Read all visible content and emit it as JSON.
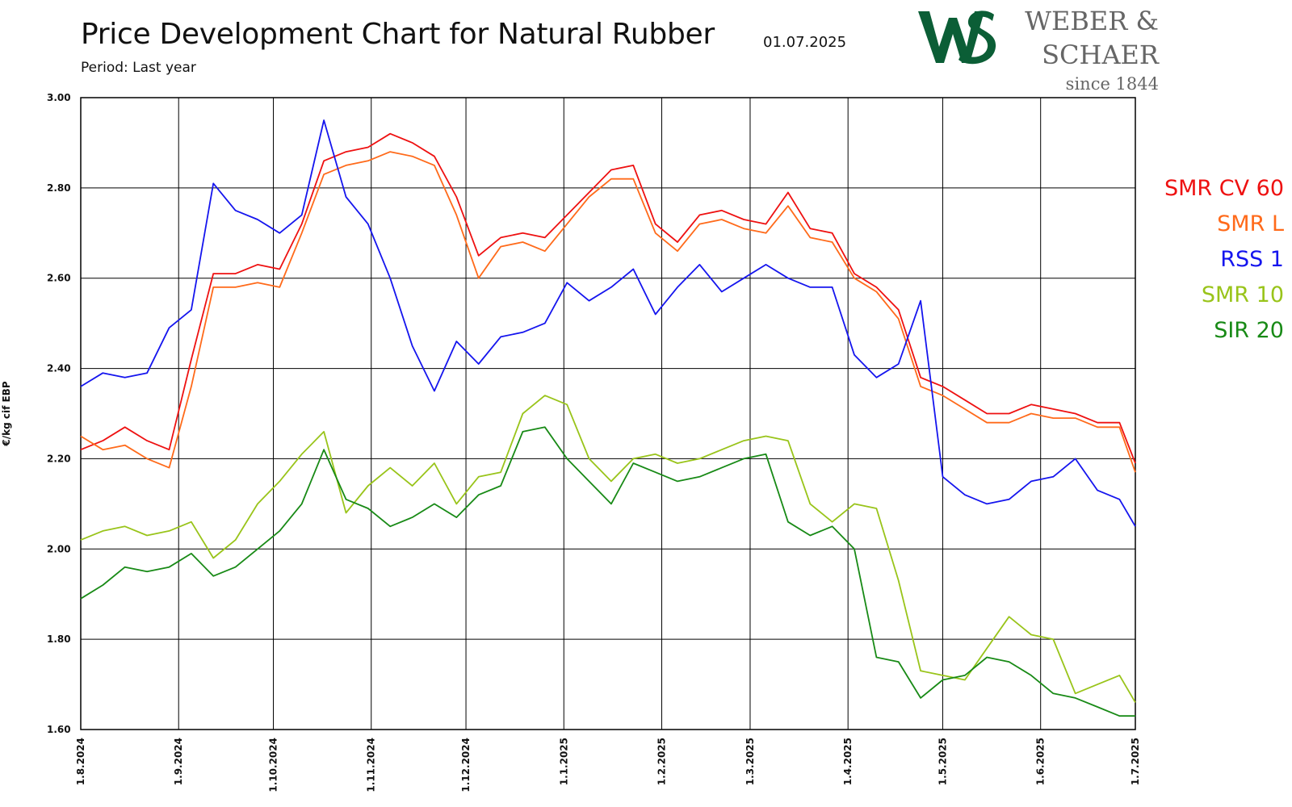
{
  "header": {
    "title": "Price Development Chart for Natural Rubber",
    "date": "01.07.2025",
    "subtitle": "Period: Last year"
  },
  "logo": {
    "mark_icon": "ws-monogram-icon",
    "line1": "WEBER &",
    "line2": "SCHAER",
    "since": "since 1844",
    "mark_color": "#0b5e36"
  },
  "chart_data": {
    "type": "line",
    "title": "Price Development Chart for Natural Rubber",
    "subtitle": "Period: Last year",
    "xlabel": "",
    "ylabel": "€/kg cif EBP",
    "ylim": [
      1.6,
      3.0
    ],
    "xlim": [
      "1.8.2024",
      "1.7.2025"
    ],
    "grid": true,
    "legend_position": "right",
    "y_ticks": [
      "3.00",
      "2.80",
      "2.60",
      "2.40",
      "2.20",
      "2.00",
      "1.80",
      "1.60"
    ],
    "x_ticks": [
      "1.8.2024",
      "1.9.2024",
      "1.10.2024",
      "1.11.2024",
      "1.12.2024",
      "1.1.2025",
      "1.2.2025",
      "1.3.2025",
      "1.4.2025",
      "1.5.2025",
      "1.6.2025",
      "1.7.2025"
    ],
    "x": [
      "1.8.2024",
      "8.8.2024",
      "15.8.2024",
      "22.8.2024",
      "29.8.2024",
      "5.9.2024",
      "12.9.2024",
      "19.9.2024",
      "26.9.2024",
      "3.10.2024",
      "10.10.2024",
      "17.10.2024",
      "24.10.2024",
      "31.10.2024",
      "7.11.2024",
      "14.11.2024",
      "21.11.2024",
      "28.11.2024",
      "5.12.2024",
      "12.12.2024",
      "19.12.2024",
      "26.12.2024",
      "2.1.2025",
      "9.1.2025",
      "16.1.2025",
      "23.1.2025",
      "30.1.2025",
      "6.2.2025",
      "13.2.2025",
      "20.2.2025",
      "27.2.2025",
      "6.3.2025",
      "13.3.2025",
      "20.3.2025",
      "27.3.2025",
      "3.4.2025",
      "10.4.2025",
      "17.4.2025",
      "24.4.2025",
      "1.5.2025",
      "8.5.2025",
      "15.5.2025",
      "22.5.2025",
      "29.5.2025",
      "5.6.2025",
      "12.6.2025",
      "19.6.2025",
      "26.6.2025",
      "1.7.2025"
    ],
    "series": [
      {
        "name": "SMR CV 60",
        "color": "#ee1111",
        "values": [
          2.22,
          2.24,
          2.27,
          2.24,
          2.22,
          2.42,
          2.61,
          2.61,
          2.63,
          2.62,
          2.72,
          2.86,
          2.88,
          2.89,
          2.92,
          2.9,
          2.87,
          2.78,
          2.65,
          2.69,
          2.7,
          2.69,
          2.74,
          2.79,
          2.84,
          2.85,
          2.72,
          2.68,
          2.74,
          2.75,
          2.73,
          2.72,
          2.79,
          2.71,
          2.7,
          2.61,
          2.58,
          2.53,
          2.38,
          2.36,
          2.33,
          2.3,
          2.3,
          2.32,
          2.31,
          2.3,
          2.28,
          2.28,
          2.19
        ]
      },
      {
        "name": "SMR L",
        "color": "#ff6a1a",
        "values": [
          2.25,
          2.22,
          2.23,
          2.2,
          2.18,
          2.36,
          2.58,
          2.58,
          2.59,
          2.58,
          2.7,
          2.83,
          2.85,
          2.86,
          2.88,
          2.87,
          2.85,
          2.74,
          2.6,
          2.67,
          2.68,
          2.66,
          2.72,
          2.78,
          2.82,
          2.82,
          2.7,
          2.66,
          2.72,
          2.73,
          2.71,
          2.7,
          2.76,
          2.69,
          2.68,
          2.6,
          2.57,
          2.51,
          2.36,
          2.34,
          2.31,
          2.28,
          2.28,
          2.3,
          2.29,
          2.29,
          2.27,
          2.27,
          2.17
        ]
      },
      {
        "name": "RSS 1",
        "color": "#1515ee",
        "values": [
          2.36,
          2.39,
          2.38,
          2.39,
          2.49,
          2.53,
          2.81,
          2.75,
          2.73,
          2.7,
          2.74,
          2.95,
          2.78,
          2.72,
          2.6,
          2.45,
          2.35,
          2.46,
          2.41,
          2.47,
          2.48,
          2.5,
          2.59,
          2.55,
          2.58,
          2.62,
          2.52,
          2.58,
          2.63,
          2.57,
          2.6,
          2.63,
          2.6,
          2.58,
          2.58,
          2.43,
          2.38,
          2.41,
          2.55,
          2.16,
          2.12,
          2.1,
          2.11,
          2.15,
          2.16,
          2.2,
          2.13,
          2.11,
          2.05
        ]
      },
      {
        "name": "SMR 10",
        "color": "#99c41a",
        "values": [
          2.02,
          2.04,
          2.05,
          2.03,
          2.04,
          2.06,
          1.98,
          2.02,
          2.1,
          2.15,
          2.21,
          2.26,
          2.08,
          2.14,
          2.18,
          2.14,
          2.19,
          2.1,
          2.16,
          2.17,
          2.3,
          2.34,
          2.32,
          2.2,
          2.15,
          2.2,
          2.21,
          2.19,
          2.2,
          2.22,
          2.24,
          2.25,
          2.24,
          2.1,
          2.06,
          2.1,
          2.09,
          1.93,
          1.73,
          1.72,
          1.71,
          1.78,
          1.85,
          1.81,
          1.8,
          1.68,
          1.7,
          1.72,
          1.66
        ]
      },
      {
        "name": "SIR 20",
        "color": "#188a16",
        "values": [
          1.89,
          1.92,
          1.96,
          1.95,
          1.96,
          1.99,
          1.94,
          1.96,
          2.0,
          2.04,
          2.1,
          2.22,
          2.11,
          2.09,
          2.05,
          2.07,
          2.1,
          2.07,
          2.12,
          2.14,
          2.26,
          2.27,
          2.2,
          2.15,
          2.1,
          2.19,
          2.17,
          2.15,
          2.16,
          2.18,
          2.2,
          2.21,
          2.06,
          2.03,
          2.05,
          2.0,
          1.76,
          1.75,
          1.67,
          1.71,
          1.72,
          1.76,
          1.75,
          1.72,
          1.68,
          1.67,
          1.65,
          1.63,
          1.63
        ]
      }
    ]
  }
}
